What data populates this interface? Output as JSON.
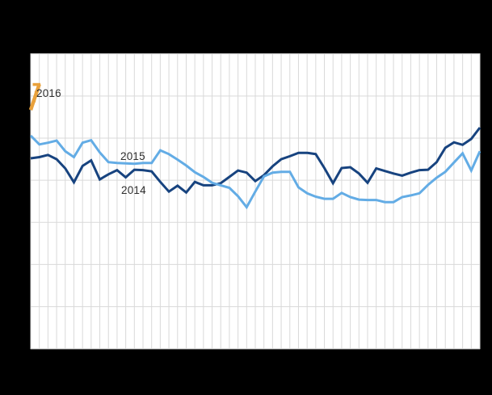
{
  "canvas": {
    "background_color": "#000000"
  },
  "plot": {
    "background_color": "#ffffff",
    "gridline_color": "#d9d9d9",
    "grid_columns": 52,
    "grid_rows": 7
  },
  "chart_data": {
    "type": "line",
    "title": "",
    "xlabel": "",
    "ylabel": "",
    "x_unit": "week",
    "x_range": [
      1,
      53
    ],
    "y_axis_note": "no numeric tick labels visible; values expressed in horizontal-gridline units (0 = bottom gridline, 7 = top gridline)",
    "ylim": [
      0,
      7
    ],
    "grid": true,
    "legend": "direct line labels inside plot",
    "series": [
      {
        "name": "2014",
        "color": "#17437F",
        "stroke_width": 3,
        "weeks_covered": 53,
        "values": [
          4.52,
          4.55,
          4.6,
          4.5,
          4.28,
          3.95,
          4.34,
          4.47,
          4.02,
          4.14,
          4.24,
          4.07,
          4.25,
          4.24,
          4.21,
          3.96,
          3.73,
          3.87,
          3.71,
          3.96,
          3.88,
          3.88,
          3.93,
          4.08,
          4.23,
          4.18,
          3.98,
          4.12,
          4.33,
          4.5,
          4.57,
          4.65,
          4.65,
          4.62,
          4.29,
          3.93,
          4.29,
          4.31,
          4.16,
          3.94,
          4.28,
          4.22,
          4.16,
          4.11,
          4.18,
          4.24,
          4.25,
          4.43,
          4.77,
          4.9,
          4.84,
          4.98,
          5.25
        ]
      },
      {
        "name": "2015",
        "color": "#63ACE5",
        "stroke_width": 3,
        "weeks_covered": 53,
        "values": [
          5.06,
          4.85,
          4.89,
          4.94,
          4.69,
          4.55,
          4.89,
          4.95,
          4.66,
          4.43,
          4.41,
          4.4,
          4.39,
          4.41,
          4.41,
          4.71,
          4.62,
          4.49,
          4.35,
          4.19,
          4.08,
          3.94,
          3.88,
          3.82,
          3.62,
          3.36,
          3.73,
          4.09,
          4.18,
          4.2,
          4.2,
          3.83,
          3.69,
          3.61,
          3.56,
          3.56,
          3.7,
          3.6,
          3.54,
          3.53,
          3.53,
          3.48,
          3.48,
          3.6,
          3.64,
          3.69,
          3.89,
          4.06,
          4.2,
          4.42,
          4.64,
          4.23,
          4.69
        ]
      },
      {
        "name": "2016",
        "color": "#E9A13B",
        "stroke_width": 4.5,
        "weeks_covered": 2,
        "values": [
          5.67,
          6.28
        ]
      }
    ],
    "annotations": [
      {
        "text": "2016",
        "week": 1.65,
        "v": 6.05
      },
      {
        "text": "2015",
        "week": 11.4,
        "v": 4.56
      },
      {
        "text": "2014",
        "week": 11.5,
        "v": 3.76
      }
    ]
  }
}
